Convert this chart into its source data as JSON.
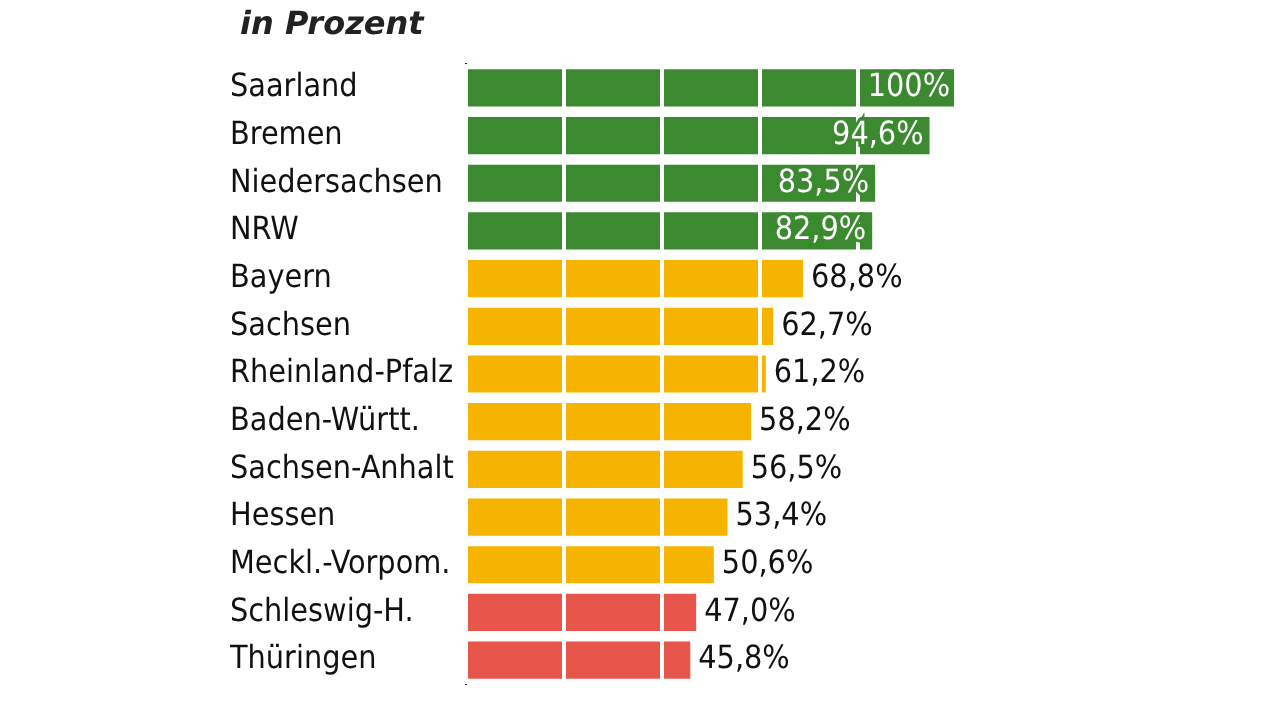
{
  "chart_data": {
    "type": "bar",
    "orientation": "horizontal",
    "title": "in Prozent",
    "categories": [
      "Saarland",
      "Bremen",
      "Niedersachsen",
      "NRW",
      "Bayern",
      "Sachsen",
      "Rheinland-Pfalz",
      "Baden-Württ.",
      "Sachsen-Anhalt",
      "Hessen",
      "Meckl.-Vorpom.",
      "Schleswig-H.",
      "Thüringen"
    ],
    "values": [
      100,
      94.6,
      83.5,
      82.9,
      68.8,
      62.7,
      61.2,
      58.2,
      56.5,
      53.4,
      50.6,
      47.0,
      45.8
    ],
    "colors": [
      "#3b8a2f",
      "#3b8a2f",
      "#3b8a2f",
      "#3b8a2f",
      "#f6b400",
      "#f6b400",
      "#f6b400",
      "#f6b400",
      "#f6b400",
      "#f6b400",
      "#f6b400",
      "#e8564b",
      "#e8564b"
    ],
    "value_labels": [
      "100%",
      "94,6%",
      "83,5%",
      "82,9%",
      "68,8%",
      "62,7%",
      "61,2%",
      "58,2%",
      "56,5%",
      "53,4%",
      "50,6%",
      "47,0%",
      "45,8%"
    ],
    "xlim": [
      0,
      100
    ],
    "xticks": [
      0,
      20,
      40,
      60,
      80,
      100
    ],
    "grid": "x",
    "tick_labels": "y",
    "legend": false
  }
}
